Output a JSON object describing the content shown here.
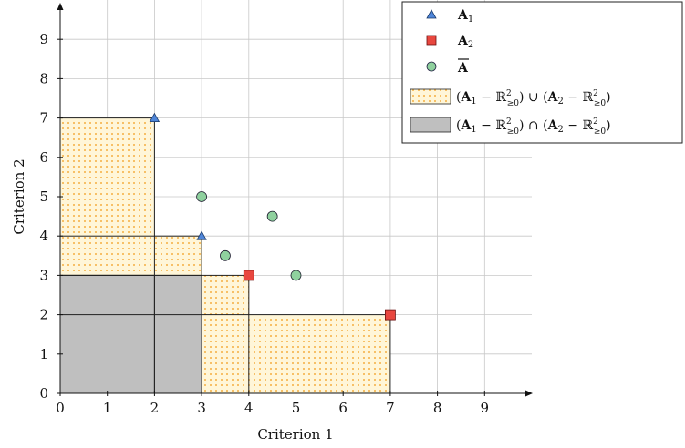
{
  "chart_data": {
    "type": "scatter",
    "xlabel": "Criterion 1",
    "ylabel": "Criterion 2",
    "xlim": [
      0,
      10
    ],
    "ylim": [
      0,
      10
    ],
    "x_ticks": [
      0,
      1,
      2,
      3,
      4,
      5,
      6,
      7,
      8,
      9
    ],
    "y_ticks": [
      0,
      1,
      2,
      3,
      4,
      5,
      6,
      7,
      8,
      9
    ],
    "grid": true,
    "legend_position": "top-right",
    "series": [
      {
        "name": "A1",
        "marker": "triangle",
        "color": "#4f86d9",
        "points": [
          [
            2,
            7
          ],
          [
            3,
            4
          ]
        ]
      },
      {
        "name": "A2",
        "marker": "square",
        "color": "#e8473f",
        "points": [
          [
            4,
            3
          ],
          [
            7,
            2
          ]
        ]
      },
      {
        "name": "Ā",
        "marker": "circle",
        "color": "#8fd19e",
        "points": [
          [
            3,
            5
          ],
          [
            3.5,
            3.5
          ],
          [
            4.5,
            4.5
          ],
          [
            5,
            3
          ]
        ]
      }
    ],
    "regions": {
      "union": {
        "label": "(A1 − R²≥0) ∪ (A2 − R²≥0)",
        "fill": "#fff5d6",
        "dots": "#f5b041",
        "boxes": [
          [
            2,
            7
          ],
          [
            3,
            4
          ],
          [
            4,
            3
          ],
          [
            7,
            2
          ]
        ]
      },
      "intersection": {
        "label": "(A1 − R²≥0) ∩ (A2 − R²≥0)",
        "fill": "#bfbfbf",
        "boxes": [
          [
            3,
            3
          ],
          [
            2,
            3
          ]
        ]
      }
    }
  }
}
